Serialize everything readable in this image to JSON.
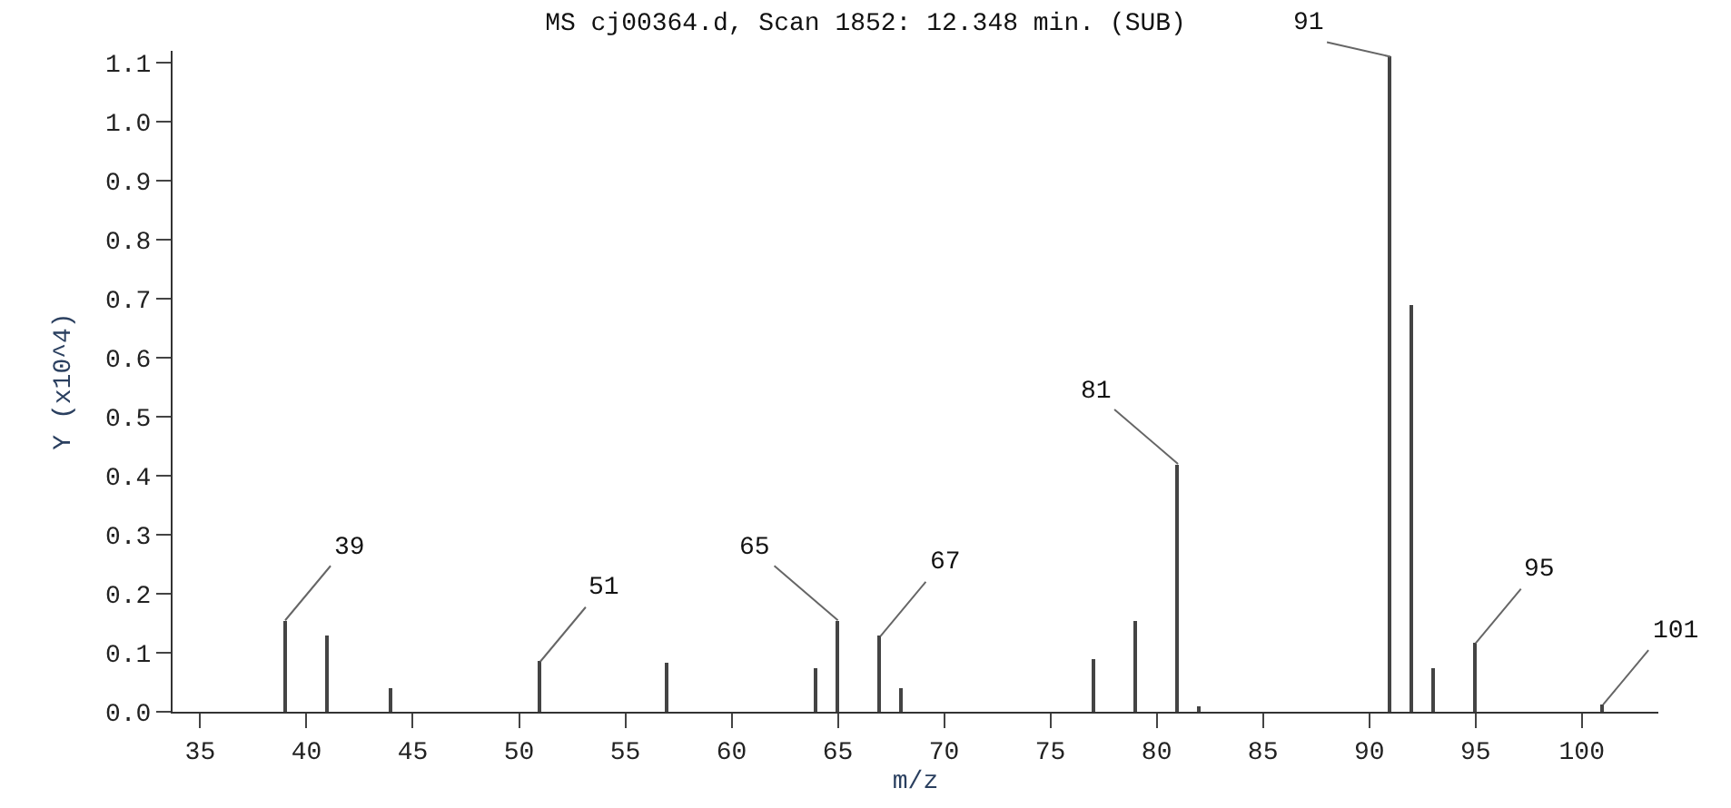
{
  "chart_data": {
    "type": "bar",
    "title": "MS cj00364.d, Scan 1852: 12.348 min. (SUB)",
    "xlabel": "m/z",
    "ylabel": "Y (x10^4)",
    "x": [
      39,
      41,
      44,
      51,
      57,
      64,
      65,
      67,
      68,
      77,
      79,
      81,
      82,
      91,
      92,
      93,
      95,
      101
    ],
    "values": [
      0.155,
      0.128,
      0.04,
      0.085,
      0.083,
      0.075,
      0.155,
      0.128,
      0.04,
      0.088,
      0.155,
      0.42,
      0.01,
      1.11,
      0.69,
      0.073,
      0.116,
      0.012
    ],
    "color": "#444444",
    "xlim": [
      33.7,
      103.6
    ],
    "xticks": [
      35,
      40,
      45,
      50,
      55,
      60,
      65,
      70,
      75,
      80,
      85,
      90,
      95,
      100
    ],
    "ylim": [
      0,
      1.12
    ],
    "yticks": [
      {
        "value": 0,
        "label": "0.0"
      },
      0.1,
      0.2,
      0.3,
      0.4,
      0.5,
      0.6,
      0.7,
      0.8,
      0.9,
      {
        "value": 1,
        "label": "1.0"
      },
      1.1
    ],
    "annotations": [
      {
        "text": "39",
        "x": 39,
        "y": 0.155
      },
      {
        "text": "51",
        "x": 51,
        "y": 0.085
      },
      {
        "text": "65",
        "x": 65,
        "y": 0.155
      },
      {
        "text": "67",
        "x": 67,
        "y": 0.128
      },
      {
        "text": "81",
        "x": 81,
        "y": 0.42
      },
      {
        "text": "91",
        "x": 91,
        "y": 1.11
      },
      {
        "text": "95",
        "x": 95,
        "y": 0.116
      },
      {
        "text": "101",
        "x": 101,
        "y": 0.012
      }
    ]
  }
}
